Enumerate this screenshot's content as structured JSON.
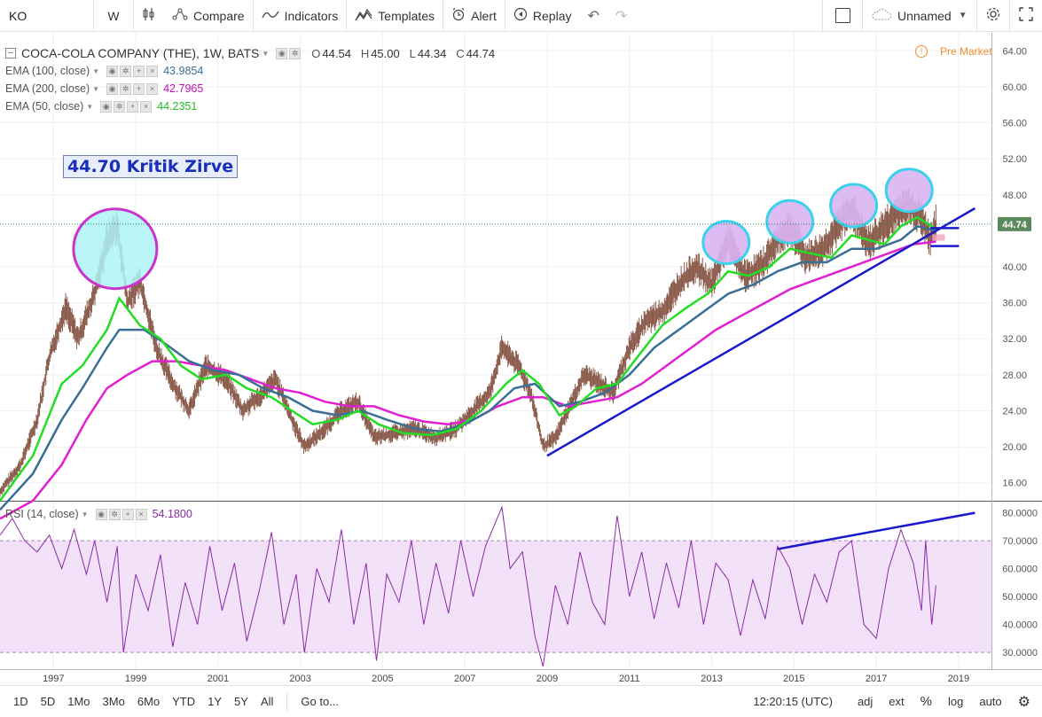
{
  "toolbar": {
    "symbol": "KO",
    "interval": "W",
    "compare": "Compare",
    "indicators": "Indicators",
    "templates": "Templates",
    "alert": "Alert",
    "replay": "Replay",
    "layout_name": "Unnamed"
  },
  "legend": {
    "title": "COCA-COLA COMPANY (THE), 1W, BATS",
    "o_label": "O",
    "o": "44.54",
    "h_label": "H",
    "h": "45.00",
    "l_label": "L",
    "l": "44.34",
    "c_label": "C",
    "c": "44.74",
    "ema100_label": "EMA (100, close)",
    "ema100_value": "43.9854",
    "ema200_label": "EMA (200, close)",
    "ema200_value": "42.7965",
    "ema50_label": "EMA (50, close)",
    "ema50_value": "44.2351",
    "rsi_label": "RSI (14, close)",
    "rsi_value": "54.1800"
  },
  "annotation": "44.70 Kritik Zirve",
  "pre_market": "Pre Market",
  "last_price": "44.74",
  "price_axis": [
    "64.00",
    "60.00",
    "56.00",
    "52.00",
    "48.00",
    "40.00",
    "36.00",
    "32.00",
    "28.00",
    "24.00",
    "20.00",
    "16.00"
  ],
  "rsi_axis": [
    "80.0000",
    "70.0000",
    "60.0000",
    "50.0000",
    "40.0000",
    "30.0000"
  ],
  "time_axis": [
    "1997",
    "1999",
    "2001",
    "2003",
    "2005",
    "2007",
    "2009",
    "2011",
    "2013",
    "2015",
    "2017",
    "2019"
  ],
  "bottom": {
    "ranges": [
      "1D",
      "5D",
      "1Mo",
      "3Mo",
      "6Mo",
      "YTD",
      "1Y",
      "5Y",
      "All"
    ],
    "goto": "Go to...",
    "time": "12:20:15 (UTC)",
    "adj": "adj",
    "ext": "ext",
    "pct": "%",
    "log": "log",
    "auto": "auto"
  },
  "colors": {
    "ema50": "#22dd22",
    "ema100": "#3a6e94",
    "ema200": "#e020d0",
    "rsi": "#8a2aa8",
    "trend": "#1a1acc",
    "bars": "#8a5a4a"
  },
  "chart_data": {
    "type": "line",
    "price_ylim": [
      14,
      66
    ],
    "rsi_ylim": [
      24,
      84
    ],
    "x_range": [
      1995.7,
      2019.8
    ],
    "price_path": [
      [
        1995.7,
        15.0
      ],
      [
        1996.2,
        18.0
      ],
      [
        1996.6,
        23.0
      ],
      [
        1996.9,
        30.0
      ],
      [
        1997.3,
        35.5
      ],
      [
        1997.6,
        32.0
      ],
      [
        1998.0,
        37.0
      ],
      [
        1998.3,
        43.0
      ],
      [
        1998.55,
        44.6
      ],
      [
        1998.8,
        36.0
      ],
      [
        1999.1,
        38.5
      ],
      [
        1999.5,
        31.0
      ],
      [
        1999.9,
        27.0
      ],
      [
        2000.3,
        24.0
      ],
      [
        2000.7,
        29.0
      ],
      [
        2001.2,
        27.5
      ],
      [
        2001.6,
        24.0
      ],
      [
        2002.1,
        26.0
      ],
      [
        2002.4,
        27.5
      ],
      [
        2002.8,
        23.0
      ],
      [
        2003.1,
        20.0
      ],
      [
        2003.6,
        22.0
      ],
      [
        2004.0,
        24.0
      ],
      [
        2004.4,
        25.0
      ],
      [
        2004.8,
        21.0
      ],
      [
        2005.3,
        21.5
      ],
      [
        2005.8,
        22.0
      ],
      [
        2006.3,
        21.0
      ],
      [
        2006.8,
        22.0
      ],
      [
        2007.2,
        24.0
      ],
      [
        2007.6,
        26.0
      ],
      [
        2007.9,
        31.0
      ],
      [
        2008.3,
        29.0
      ],
      [
        2008.6,
        26.0
      ],
      [
        2008.9,
        20.0
      ],
      [
        2009.2,
        21.0
      ],
      [
        2009.6,
        25.0
      ],
      [
        2009.9,
        28.0
      ],
      [
        2010.3,
        27.0
      ],
      [
        2010.6,
        26.0
      ],
      [
        2011.0,
        31.0
      ],
      [
        2011.4,
        34.0
      ],
      [
        2011.8,
        35.0
      ],
      [
        2012.2,
        38.0
      ],
      [
        2012.6,
        40.0
      ],
      [
        2013.0,
        38.0
      ],
      [
        2013.4,
        43.0
      ],
      [
        2013.8,
        39.0
      ],
      [
        2014.2,
        40.0
      ],
      [
        2014.6,
        43.0
      ],
      [
        2014.9,
        44.5
      ],
      [
        2015.3,
        41.0
      ],
      [
        2015.7,
        42.0
      ],
      [
        2016.0,
        44.0
      ],
      [
        2016.4,
        46.5
      ],
      [
        2016.8,
        42.5
      ],
      [
        2017.1,
        44.0
      ],
      [
        2017.5,
        46.0
      ],
      [
        2017.8,
        47.0
      ],
      [
        2018.1,
        45.5
      ],
      [
        2018.3,
        43.0
      ],
      [
        2018.45,
        44.74
      ]
    ],
    "series": [
      {
        "name": "EMA (50, close)",
        "points": [
          [
            1995.7,
            14.0
          ],
          [
            1996.5,
            19.0
          ],
          [
            1997.2,
            27.0
          ],
          [
            1997.7,
            29.0
          ],
          [
            1998.3,
            33.0
          ],
          [
            1998.6,
            36.5
          ],
          [
            1999.1,
            33.5
          ],
          [
            1999.6,
            32.0
          ],
          [
            2000.1,
            29.0
          ],
          [
            2000.6,
            27.5
          ],
          [
            2001.2,
            28.0
          ],
          [
            2001.7,
            26.5
          ],
          [
            2002.3,
            25.5
          ],
          [
            2002.8,
            24.0
          ],
          [
            2003.3,
            22.5
          ],
          [
            2003.9,
            23.0
          ],
          [
            2004.4,
            24.0
          ],
          [
            2004.9,
            22.5
          ],
          [
            2005.5,
            21.5
          ],
          [
            2006.2,
            21.3
          ],
          [
            2006.8,
            22.0
          ],
          [
            2007.4,
            24.0
          ],
          [
            2008.0,
            27.0
          ],
          [
            2008.4,
            28.5
          ],
          [
            2008.8,
            27.0
          ],
          [
            2009.3,
            23.5
          ],
          [
            2009.7,
            24.5
          ],
          [
            2010.2,
            26.5
          ],
          [
            2010.7,
            27.0
          ],
          [
            2011.2,
            30.0
          ],
          [
            2011.8,
            33.5
          ],
          [
            2012.4,
            35.5
          ],
          [
            2012.9,
            37.0
          ],
          [
            2013.4,
            39.5
          ],
          [
            2013.9,
            39.0
          ],
          [
            2014.4,
            40.0
          ],
          [
            2014.9,
            42.0
          ],
          [
            2015.4,
            41.5
          ],
          [
            2015.9,
            41.0
          ],
          [
            2016.4,
            43.5
          ],
          [
            2016.8,
            43.0
          ],
          [
            2017.2,
            42.5
          ],
          [
            2017.6,
            44.5
          ],
          [
            2018.0,
            45.5
          ],
          [
            2018.45,
            44.2
          ]
        ]
      },
      {
        "name": "EMA (100, close)",
        "points": [
          [
            1995.7,
            13.0
          ],
          [
            1996.5,
            17.0
          ],
          [
            1997.2,
            23.0
          ],
          [
            1997.7,
            26.5
          ],
          [
            1998.3,
            31.0
          ],
          [
            1998.6,
            33.0
          ],
          [
            1999.2,
            33.0
          ],
          [
            1999.7,
            31.5
          ],
          [
            2000.3,
            29.5
          ],
          [
            2000.9,
            28.5
          ],
          [
            2001.5,
            28.0
          ],
          [
            2002.1,
            26.5
          ],
          [
            2002.7,
            25.5
          ],
          [
            2003.3,
            24.0
          ],
          [
            2003.9,
            23.5
          ],
          [
            2004.5,
            24.0
          ],
          [
            2005.1,
            23.0
          ],
          [
            2005.8,
            22.0
          ],
          [
            2006.4,
            21.7
          ],
          [
            2007.0,
            22.5
          ],
          [
            2007.6,
            24.0
          ],
          [
            2008.2,
            26.5
          ],
          [
            2008.7,
            27.0
          ],
          [
            2009.3,
            24.5
          ],
          [
            2009.8,
            25.0
          ],
          [
            2010.4,
            26.0
          ],
          [
            2011.0,
            28.0
          ],
          [
            2011.6,
            31.0
          ],
          [
            2012.2,
            33.0
          ],
          [
            2012.8,
            35.0
          ],
          [
            2013.4,
            37.0
          ],
          [
            2014.0,
            38.0
          ],
          [
            2014.6,
            39.5
          ],
          [
            2015.2,
            40.5
          ],
          [
            2015.8,
            40.5
          ],
          [
            2016.4,
            42.0
          ],
          [
            2017.0,
            42.0
          ],
          [
            2017.6,
            43.0
          ],
          [
            2018.0,
            44.5
          ],
          [
            2018.45,
            44.0
          ]
        ]
      },
      {
        "name": "EMA (200, close)",
        "points": [
          [
            1995.7,
            12.0
          ],
          [
            1996.5,
            14.0
          ],
          [
            1997.2,
            18.0
          ],
          [
            1997.8,
            23.0
          ],
          [
            1998.3,
            26.5
          ],
          [
            1998.8,
            28.0
          ],
          [
            1999.4,
            29.5
          ],
          [
            2000.0,
            29.5
          ],
          [
            2000.6,
            29.0
          ],
          [
            2001.2,
            28.5
          ],
          [
            2001.8,
            27.5
          ],
          [
            2002.4,
            26.5
          ],
          [
            2003.0,
            26.0
          ],
          [
            2003.6,
            25.0
          ],
          [
            2004.2,
            24.5
          ],
          [
            2004.8,
            24.5
          ],
          [
            2005.4,
            23.5
          ],
          [
            2006.0,
            22.8
          ],
          [
            2006.6,
            22.5
          ],
          [
            2007.2,
            23.0
          ],
          [
            2007.8,
            24.5
          ],
          [
            2008.4,
            25.5
          ],
          [
            2008.9,
            25.5
          ],
          [
            2009.5,
            24.5
          ],
          [
            2010.1,
            25.0
          ],
          [
            2010.7,
            25.5
          ],
          [
            2011.3,
            27.0
          ],
          [
            2011.9,
            29.0
          ],
          [
            2012.5,
            31.0
          ],
          [
            2013.1,
            33.0
          ],
          [
            2013.7,
            34.5
          ],
          [
            2014.3,
            36.0
          ],
          [
            2014.9,
            37.5
          ],
          [
            2015.5,
            38.5
          ],
          [
            2016.1,
            39.5
          ],
          [
            2016.7,
            40.5
          ],
          [
            2017.3,
            41.5
          ],
          [
            2017.9,
            42.5
          ],
          [
            2018.45,
            42.8
          ]
        ]
      }
    ],
    "rsi_path": [
      [
        1995.7,
        72
      ],
      [
        1996.0,
        78
      ],
      [
        1996.3,
        70
      ],
      [
        1996.6,
        66
      ],
      [
        1996.9,
        72
      ],
      [
        1997.2,
        60
      ],
      [
        1997.5,
        74
      ],
      [
        1997.8,
        58
      ],
      [
        1998.0,
        70
      ],
      [
        1998.3,
        48
      ],
      [
        1998.55,
        68
      ],
      [
        1998.7,
        30
      ],
      [
        1999.0,
        58
      ],
      [
        1999.3,
        45
      ],
      [
        1999.6,
        65
      ],
      [
        1999.9,
        32
      ],
      [
        2000.2,
        55
      ],
      [
        2000.5,
        40
      ],
      [
        2000.8,
        68
      ],
      [
        2001.1,
        45
      ],
      [
        2001.4,
        62
      ],
      [
        2001.7,
        34
      ],
      [
        2002.0,
        52
      ],
      [
        2002.3,
        73
      ],
      [
        2002.6,
        40
      ],
      [
        2002.9,
        58
      ],
      [
        2003.1,
        30
      ],
      [
        2003.4,
        60
      ],
      [
        2003.7,
        48
      ],
      [
        2004.0,
        74
      ],
      [
        2004.3,
        40
      ],
      [
        2004.6,
        62
      ],
      [
        2004.85,
        27
      ],
      [
        2005.1,
        58
      ],
      [
        2005.4,
        48
      ],
      [
        2005.7,
        70
      ],
      [
        2006.0,
        40
      ],
      [
        2006.3,
        62
      ],
      [
        2006.6,
        44
      ],
      [
        2006.9,
        70
      ],
      [
        2007.2,
        50
      ],
      [
        2007.5,
        68
      ],
      [
        2007.9,
        82
      ],
      [
        2008.1,
        60
      ],
      [
        2008.4,
        66
      ],
      [
        2008.7,
        36
      ],
      [
        2008.9,
        25
      ],
      [
        2009.2,
        54
      ],
      [
        2009.5,
        40
      ],
      [
        2009.8,
        66
      ],
      [
        2010.1,
        48
      ],
      [
        2010.4,
        40
      ],
      [
        2010.7,
        79
      ],
      [
        2011.0,
        50
      ],
      [
        2011.3,
        66
      ],
      [
        2011.6,
        42
      ],
      [
        2011.9,
        62
      ],
      [
        2012.2,
        46
      ],
      [
        2012.5,
        70
      ],
      [
        2012.8,
        40
      ],
      [
        2013.1,
        62
      ],
      [
        2013.4,
        56
      ],
      [
        2013.7,
        36
      ],
      [
        2014.0,
        56
      ],
      [
        2014.3,
        42
      ],
      [
        2014.6,
        68
      ],
      [
        2014.9,
        60
      ],
      [
        2015.2,
        40
      ],
      [
        2015.5,
        58
      ],
      [
        2015.8,
        48
      ],
      [
        2016.1,
        66
      ],
      [
        2016.4,
        70
      ],
      [
        2016.7,
        40
      ],
      [
        2017.0,
        35
      ],
      [
        2017.3,
        60
      ],
      [
        2017.6,
        74
      ],
      [
        2017.9,
        62
      ],
      [
        2018.1,
        45
      ],
      [
        2018.2,
        70
      ],
      [
        2018.35,
        40
      ],
      [
        2018.45,
        54
      ]
    ],
    "trendlines": [
      {
        "pane": "price",
        "from": [
          2009.0,
          19.0
        ],
        "to": [
          2019.4,
          46.5
        ]
      },
      {
        "pane": "rsi",
        "from": [
          2014.6,
          67
        ],
        "to": [
          2019.4,
          80
        ]
      }
    ],
    "circles": [
      {
        "x": 1998.5,
        "y": 42.0,
        "style": "magenta"
      },
      {
        "x": 2013.35,
        "y": 42.7,
        "style": "cyan"
      },
      {
        "x": 2014.9,
        "y": 45.0,
        "style": "cyan"
      },
      {
        "x": 2016.45,
        "y": 46.8,
        "style": "cyan"
      },
      {
        "x": 2017.8,
        "y": 48.5,
        "style": "cyan"
      }
    ]
  }
}
